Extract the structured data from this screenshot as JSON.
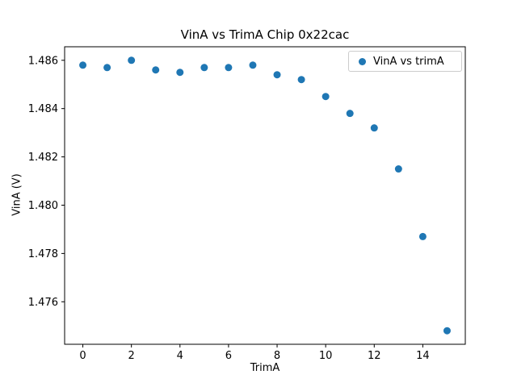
{
  "chart_data": {
    "type": "scatter",
    "title": "VinA vs TrimA Chip 0x22cac",
    "xlabel": "TrimA",
    "ylabel": "VinA (V)",
    "legend": {
      "label": "VinA vs trimA",
      "position": "upper right"
    },
    "marker_color": "#1f77b4",
    "x": [
      0,
      1,
      2,
      3,
      4,
      5,
      6,
      7,
      8,
      9,
      10,
      11,
      12,
      13,
      14,
      15
    ],
    "y": [
      1.4858,
      1.4857,
      1.486,
      1.4856,
      1.4855,
      1.4857,
      1.4857,
      1.4858,
      1.4854,
      1.4852,
      1.4845,
      1.4838,
      1.4832,
      1.4815,
      1.4787,
      1.4748
    ],
    "xlim": [
      -0.75,
      15.75
    ],
    "ylim": [
      1.47424,
      1.48656
    ],
    "xticks": [
      0,
      2,
      4,
      6,
      8,
      10,
      12,
      14
    ],
    "xtick_labels": [
      "0",
      "2",
      "4",
      "6",
      "8",
      "10",
      "12",
      "14"
    ],
    "yticks": [
      1.476,
      1.478,
      1.48,
      1.482,
      1.484,
      1.486
    ],
    "ytick_labels": [
      "1.476",
      "1.478",
      "1.480",
      "1.482",
      "1.484",
      "1.486"
    ],
    "grid": false
  }
}
